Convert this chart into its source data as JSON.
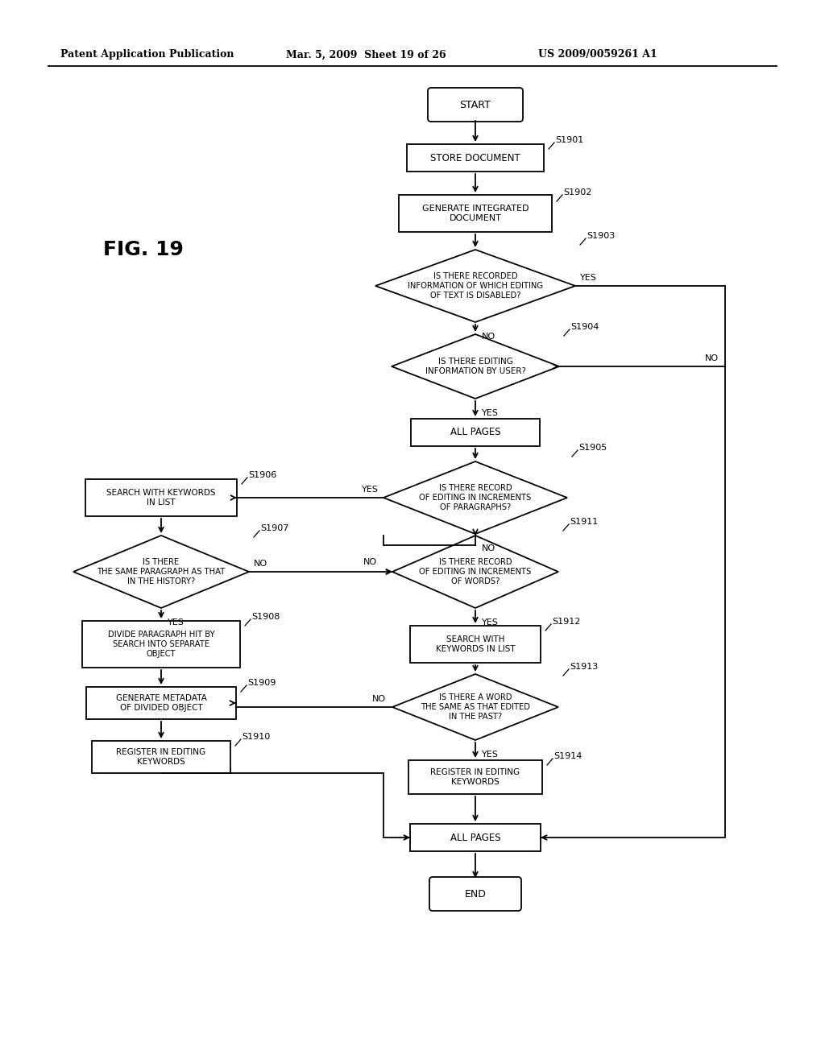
{
  "title_left": "Patent Application Publication",
  "title_mid": "Mar. 5, 2009  Sheet 19 of 26",
  "title_right": "US 2009/0059261 A1",
  "fig_label": "FIG. 19",
  "background": "#ffffff",
  "line_color": "#000000",
  "text_color": "#000000"
}
